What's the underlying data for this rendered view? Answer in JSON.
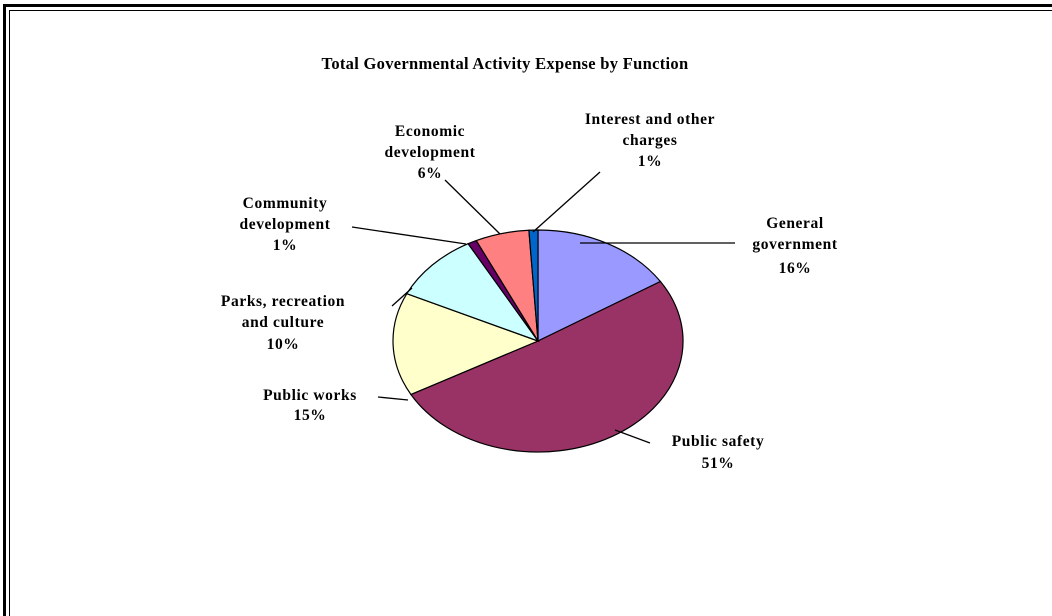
{
  "chart_data": {
    "type": "pie",
    "title": "Total  Governmental  Activity Expense by Function",
    "unit": "%",
    "slices": [
      {
        "label": [
          "General",
          "government"
        ],
        "pct_label": "16%",
        "value": 16,
        "color": "#9999ff",
        "key": "general-government"
      },
      {
        "label": [
          "Public safety"
        ],
        "pct_label": "51%",
        "value": 51,
        "color": "#993366",
        "key": "public-safety"
      },
      {
        "label": [
          "Public works"
        ],
        "pct_label": "15%",
        "value": 15,
        "color": "#ffffcc",
        "key": "public-works"
      },
      {
        "label": [
          "Parks, recreation",
          "and culture"
        ],
        "pct_label": "10%",
        "value": 10,
        "color": "#ccffff",
        "key": "parks-recreation-culture"
      },
      {
        "label": [
          "Community",
          "development"
        ],
        "pct_label": "1%",
        "value": 1,
        "color": "#660066",
        "key": "community-development"
      },
      {
        "label": [
          "Economic",
          "development"
        ],
        "pct_label": "6%",
        "value": 6,
        "color": "#ff8080",
        "key": "economic-development"
      },
      {
        "label": [
          "Interest and other",
          "charges"
        ],
        "pct_label": "1%",
        "value": 1,
        "color": "#0066cc",
        "key": "interest-other-charges"
      }
    ]
  }
}
